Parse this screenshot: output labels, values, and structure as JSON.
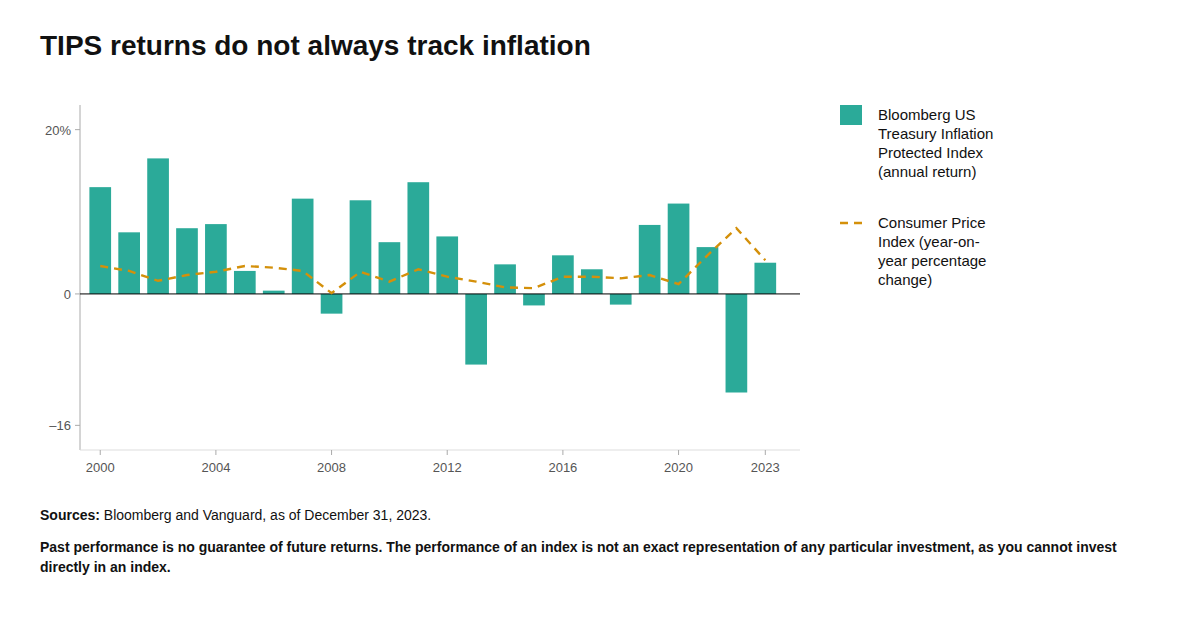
{
  "chart_data": {
    "type": "bar",
    "title": "TIPS returns do not always track inflation",
    "x": [
      2000,
      2001,
      2002,
      2003,
      2004,
      2005,
      2006,
      2007,
      2008,
      2009,
      2010,
      2011,
      2012,
      2013,
      2014,
      2015,
      2016,
      2017,
      2018,
      2019,
      2020,
      2021,
      2022,
      2023
    ],
    "series": [
      {
        "name": "Bloomberg US\nTreasury Inflation\nProtected Index\n(annual return)",
        "type": "bar",
        "color": "#2baa99",
        "values": [
          13.0,
          7.5,
          16.5,
          8.0,
          8.5,
          2.8,
          0.4,
          11.6,
          -2.4,
          11.4,
          6.3,
          13.6,
          7.0,
          -8.6,
          3.6,
          -1.4,
          4.7,
          3.0,
          -1.3,
          8.4,
          11.0,
          5.7,
          -12.0,
          3.8
        ]
      },
      {
        "name": "Consumer Price\nIndex (year-on-\nyear percentage\nchange)",
        "type": "line",
        "color": "#d4900a",
        "line_style": "dashed",
        "values": [
          3.4,
          2.8,
          1.6,
          2.3,
          2.7,
          3.4,
          3.2,
          2.8,
          0.1,
          2.7,
          1.5,
          3.0,
          2.1,
          1.5,
          0.8,
          0.7,
          2.1,
          2.1,
          1.9,
          2.3,
          1.2,
          4.7,
          8.0,
          4.1
        ]
      }
    ],
    "xlim": [
      1999.3,
      2024.2
    ],
    "xticks": [
      2000,
      2004,
      2008,
      2012,
      2016,
      2020,
      2023
    ],
    "ylim": [
      -19,
      23
    ],
    "yticks": [
      {
        "value": 20,
        "label": "20%"
      },
      0,
      {
        "value": -16,
        "label": "–16"
      }
    ],
    "grid": false,
    "legend": "right",
    "annotations": [
      "Sources:",
      " Bloomberg and Vanguard, as of December 31, 2023.",
      "Past performance is no guarantee of future returns. The performance of an index is not an exact representation of any particular investment, as you cannot invest directly in an index."
    ]
  }
}
